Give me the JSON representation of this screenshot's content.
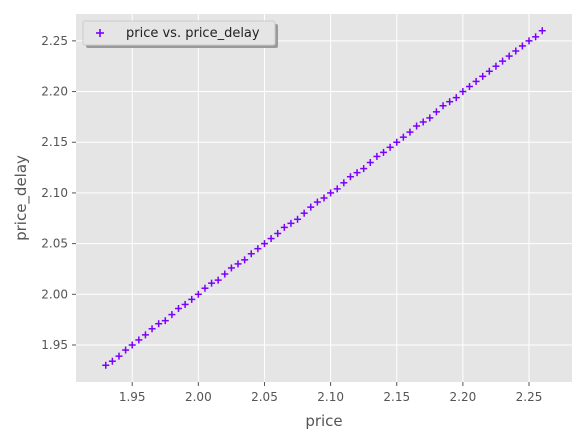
{
  "chart_data": {
    "type": "scatter",
    "xlabel": "price",
    "ylabel": "price_delay",
    "xlim": [
      1.9075,
      2.2825
    ],
    "ylim": [
      1.9135,
      2.2765
    ],
    "x_ticks": [
      1.95,
      2.0,
      2.05,
      2.1,
      2.15,
      2.2,
      2.25
    ],
    "x_tick_labels": [
      "1.95",
      "2.00",
      "2.05",
      "2.10",
      "2.15",
      "2.20",
      "2.25"
    ],
    "y_ticks": [
      1.95,
      2.0,
      2.05,
      2.1,
      2.15,
      2.2,
      2.25
    ],
    "y_tick_labels": [
      "1.95",
      "2.00",
      "2.05",
      "2.10",
      "2.15",
      "2.20",
      "2.25"
    ],
    "grid": true,
    "legend": {
      "position": "top-left",
      "entries": [
        "price vs. price_delay"
      ]
    },
    "marker": "+",
    "colors": {
      "series": "#7B00FF",
      "plot_bg": "#E5E5E5",
      "grid": "#FFFFFF",
      "text": "#555555"
    },
    "series": [
      {
        "name": "price vs. price_delay",
        "x": [
          1.93,
          1.935,
          1.94,
          1.945,
          1.95,
          1.955,
          1.96,
          1.965,
          1.97,
          1.975,
          1.98,
          1.985,
          1.99,
          1.995,
          2.0,
          2.005,
          2.01,
          2.015,
          2.02,
          2.025,
          2.03,
          2.035,
          2.04,
          2.045,
          2.05,
          2.055,
          2.06,
          2.065,
          2.07,
          2.075,
          2.08,
          2.085,
          2.09,
          2.095,
          2.1,
          2.105,
          2.11,
          2.115,
          2.12,
          2.125,
          2.13,
          2.135,
          2.14,
          2.145,
          2.15,
          2.155,
          2.16,
          2.165,
          2.17,
          2.175,
          2.18,
          2.185,
          2.19,
          2.195,
          2.2,
          2.205,
          2.21,
          2.215,
          2.22,
          2.225,
          2.23,
          2.235,
          2.24,
          2.245,
          2.25,
          2.255,
          2.26
        ],
        "y": [
          1.93,
          1.934,
          1.939,
          1.945,
          1.95,
          1.955,
          1.96,
          1.966,
          1.971,
          1.974,
          1.98,
          1.986,
          1.99,
          1.995,
          2.0,
          2.006,
          2.011,
          2.014,
          2.02,
          2.026,
          2.03,
          2.034,
          2.04,
          2.045,
          2.05,
          2.055,
          2.06,
          2.066,
          2.07,
          2.074,
          2.08,
          2.086,
          2.091,
          2.095,
          2.1,
          2.104,
          2.11,
          2.116,
          2.12,
          2.124,
          2.13,
          2.136,
          2.14,
          2.145,
          2.15,
          2.155,
          2.16,
          2.166,
          2.17,
          2.174,
          2.18,
          2.186,
          2.19,
          2.194,
          2.2,
          2.205,
          2.21,
          2.215,
          2.22,
          2.225,
          2.23,
          2.235,
          2.24,
          2.245,
          2.25,
          2.254,
          2.26
        ]
      }
    ]
  }
}
